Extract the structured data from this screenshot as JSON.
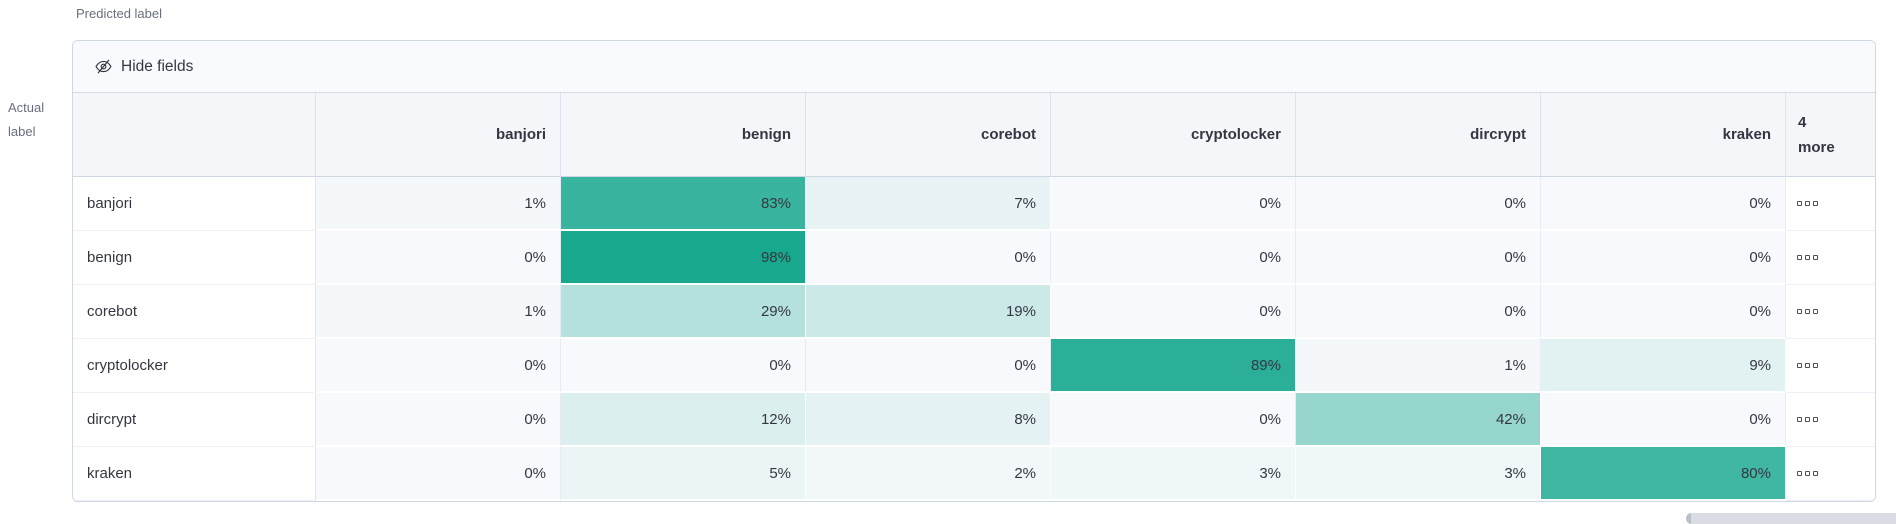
{
  "axes": {
    "predicted_label": "Predicted label",
    "actual_label_line1": "Actual",
    "actual_label_line2": "label"
  },
  "toolbar": {
    "hide_fields_label": "Hide fields"
  },
  "matrix": {
    "columns": [
      "banjori",
      "benign",
      "corebot",
      "cryptolocker",
      "dircrypt",
      "kraken"
    ],
    "more_column": {
      "count": "4",
      "label": "more"
    },
    "value_suffix": "%",
    "rows": [
      {
        "label": "banjori",
        "values": [
          1,
          83,
          7,
          0,
          0,
          0
        ]
      },
      {
        "label": "benign",
        "values": [
          0,
          98,
          0,
          0,
          0,
          0
        ]
      },
      {
        "label": "corebot",
        "values": [
          1,
          29,
          19,
          0,
          0,
          0
        ]
      },
      {
        "label": "cryptolocker",
        "values": [
          0,
          0,
          0,
          89,
          1,
          9
        ]
      },
      {
        "label": "dircrypt",
        "values": [
          0,
          12,
          8,
          0,
          42,
          0
        ]
      },
      {
        "label": "kraken",
        "values": [
          0,
          5,
          2,
          3,
          3,
          80
        ]
      }
    ]
  },
  "colors": {
    "heat_base": "#12a68c",
    "cell_bg": "#f7f9fc",
    "header_bg": "#f4f6fa",
    "panel_border": "#cfd7e2",
    "text": "#343741",
    "subdued_text": "#69707d"
  },
  "chart_data": {
    "type": "heatmap",
    "x_label": "Predicted label",
    "y_label": "Actual label",
    "x_categories": [
      "banjori",
      "benign",
      "corebot",
      "cryptolocker",
      "dircrypt",
      "kraken"
    ],
    "y_categories": [
      "banjori",
      "benign",
      "corebot",
      "cryptolocker",
      "dircrypt",
      "kraken"
    ],
    "values_percent": [
      [
        1,
        83,
        7,
        0,
        0,
        0
      ],
      [
        0,
        98,
        0,
        0,
        0,
        0
      ],
      [
        1,
        29,
        19,
        0,
        0,
        0
      ],
      [
        0,
        0,
        0,
        89,
        1,
        9
      ],
      [
        0,
        12,
        8,
        0,
        42,
        0
      ],
      [
        0,
        5,
        2,
        3,
        3,
        80
      ]
    ],
    "extra_columns_indicator": "4 more",
    "legend": "none",
    "value_range": [
      0,
      100
    ]
  }
}
